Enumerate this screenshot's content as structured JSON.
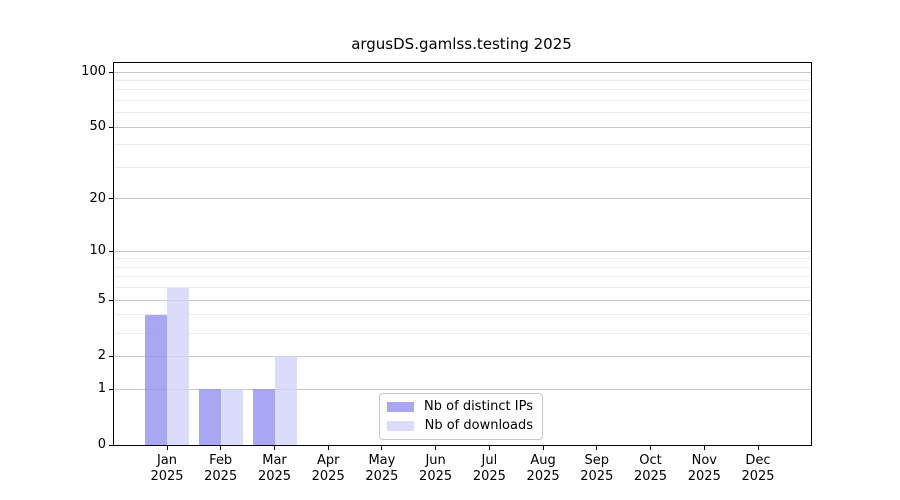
{
  "figure": {
    "background": "#ffffff",
    "spine_color": "#000000"
  },
  "chart_data": {
    "type": "bar",
    "title": "argusDS.gamlss.testing 2025",
    "x_categories": [
      "Jan",
      "Feb",
      "Mar",
      "Apr",
      "May",
      "Jun",
      "Jul",
      "Aug",
      "Sep",
      "Oct",
      "Nov",
      "Dec"
    ],
    "x_year_label": "2025",
    "series": [
      {
        "name": "Nb of distinct IPs",
        "color": "#9191f1",
        "values": [
          4,
          1,
          1,
          0,
          0,
          0,
          0,
          0,
          0,
          0,
          0,
          0
        ]
      },
      {
        "name": "Nb of downloads",
        "color": "#d2d2f9",
        "values": [
          6,
          1,
          2,
          0,
          0,
          0,
          0,
          0,
          0,
          0,
          0,
          0
        ]
      }
    ],
    "bar_alpha": 0.8,
    "y_axis": {
      "scale": "log10(1+y)",
      "range": [
        0,
        100
      ],
      "major_ticks": [
        100,
        50,
        20,
        10,
        5,
        2,
        1,
        0
      ],
      "major_gridlines": [
        1,
        2,
        5,
        10,
        20,
        50,
        100
      ],
      "minor_gridlines": [
        3,
        4,
        6,
        7,
        8,
        9,
        30,
        40,
        60,
        70,
        80,
        90
      ]
    },
    "grid": {
      "major_color": "#c9c9c9",
      "minor_color": "#ececec"
    },
    "legend": {
      "position": "lower center"
    }
  }
}
